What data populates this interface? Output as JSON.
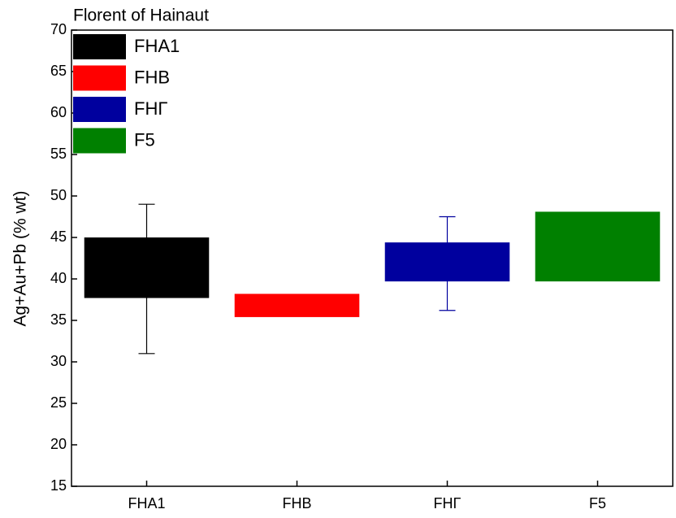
{
  "chart_data": {
    "type": "box",
    "title": "Florent of Hainaut",
    "y_label": "Ag+Au+Pb (% wt)",
    "categories": [
      "FHA1",
      "FHB",
      "FHΓ",
      "F5"
    ],
    "boxes": [
      {
        "low": 37.7,
        "high": 45,
        "whisker_low": 31,
        "whisker_high": 49,
        "color": "#000000"
      },
      {
        "low": 35.4,
        "high": 38.2,
        "color": "#ff0000"
      },
      {
        "low": 39.7,
        "high": 44.4,
        "whisker_low": 36.2,
        "whisker_high": 47.5,
        "color": "#00009e"
      },
      {
        "low": 39.7,
        "high": 48.1,
        "color": "#008000"
      }
    ],
    "ylim": [
      15,
      70
    ],
    "yticks": [
      15,
      20,
      25,
      30,
      35,
      40,
      45,
      50,
      55,
      60,
      65,
      70
    ],
    "legend": "upper left"
  }
}
